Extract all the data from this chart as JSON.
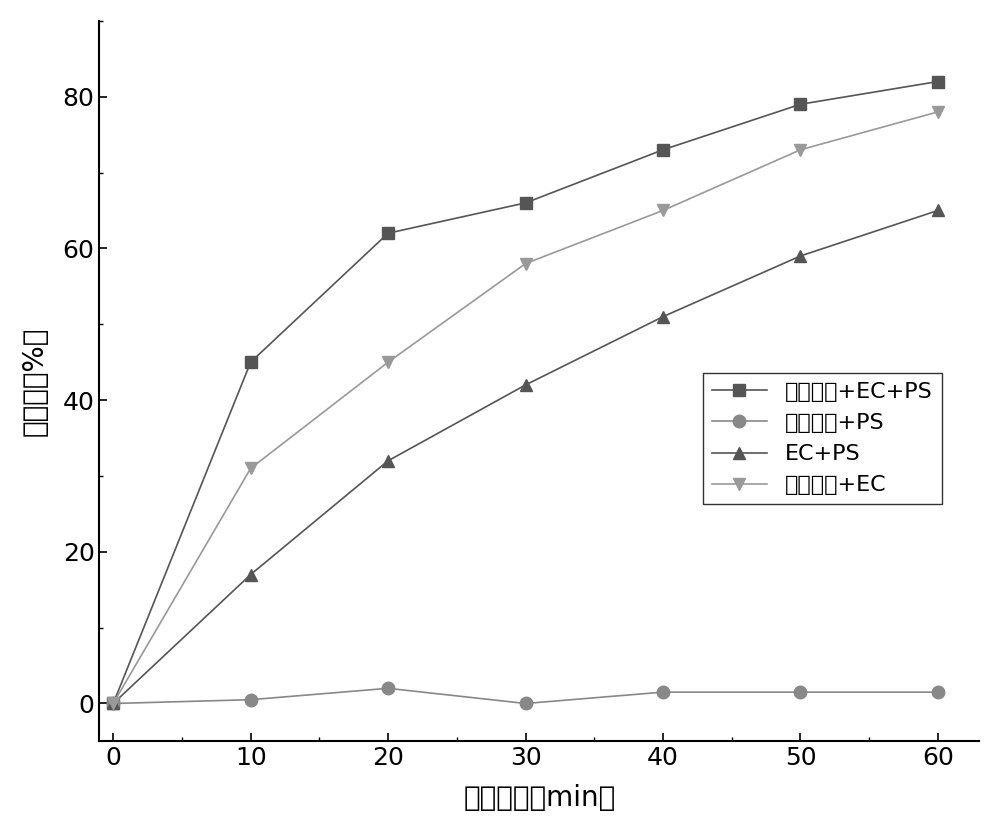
{
  "x": [
    0,
    10,
    20,
    30,
    40,
    50,
    60
  ],
  "series": [
    {
      "label": "粒子电极+EC+PS",
      "y": [
        0,
        45,
        62,
        66,
        73,
        79,
        82
      ],
      "color": "#555555",
      "marker": "s",
      "markersize": 8
    },
    {
      "label": "粒子电极+PS",
      "y": [
        0,
        0.5,
        2,
        0,
        1.5,
        1.5,
        1.5
      ],
      "color": "#888888",
      "marker": "o",
      "markersize": 9
    },
    {
      "label": "EC+PS",
      "y": [
        0,
        17,
        32,
        42,
        51,
        59,
        65
      ],
      "color": "#555555",
      "marker": "^",
      "markersize": 9
    },
    {
      "label": "粒子电极+EC",
      "y": [
        0,
        31,
        45,
        58,
        65,
        73,
        78
      ],
      "color": "#999999",
      "marker": "v",
      "markersize": 9
    }
  ],
  "xlabel": "反应时间（min）",
  "ylabel": "降解率（%）",
  "xlim": [
    -1,
    63
  ],
  "ylim": [
    -5,
    90
  ],
  "xticks": [
    0,
    10,
    20,
    30,
    40,
    50,
    60
  ],
  "yticks": [
    0,
    20,
    40,
    60,
    80
  ],
  "axis_label_fontsize": 20,
  "tick_fontsize": 18,
  "legend_fontsize": 16,
  "linewidth": 1.2,
  "background_color": "#ffffff"
}
